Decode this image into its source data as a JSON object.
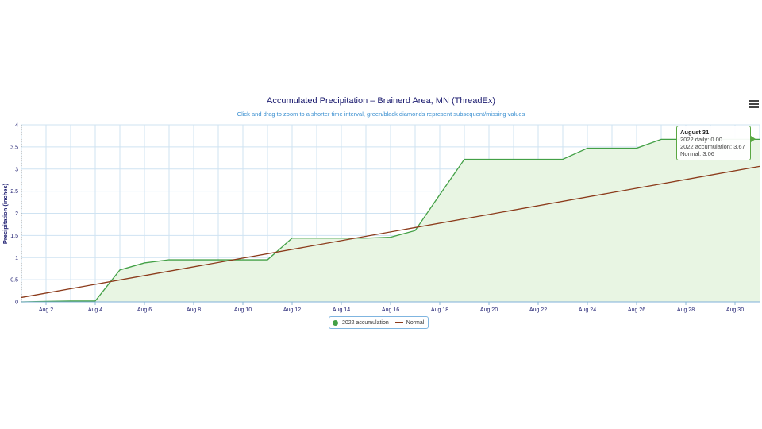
{
  "menu_icon": "hamburger-menu-icon",
  "chart_data": {
    "type": "area",
    "title": "Accumulated Precipitation – Brainerd Area, MN (ThreadEx)",
    "subtitle": "Click and drag to zoom to a shorter time interval, green/black diamonds represent subsequent/missing values",
    "ylabel": "Precipitation (inches)",
    "xlabel": "",
    "ylim": [
      0,
      4
    ],
    "yticks": [
      "0",
      "0.5",
      "1",
      "1.5",
      "2",
      "2.5",
      "3",
      "3.5",
      "4"
    ],
    "ytick_values": [
      0,
      0.5,
      1,
      1.5,
      2,
      2.5,
      3,
      3.5,
      4
    ],
    "xlim_day": [
      1,
      31
    ],
    "xticks": [
      "Aug 2",
      "Aug 4",
      "Aug 6",
      "Aug 8",
      "Aug 10",
      "Aug 12",
      "Aug 14",
      "Aug 16",
      "Aug 18",
      "Aug 20",
      "Aug 22",
      "Aug 24",
      "Aug 26",
      "Aug 28",
      "Aug 30"
    ],
    "xtick_days": [
      2,
      4,
      6,
      8,
      10,
      12,
      14,
      16,
      18,
      20,
      22,
      24,
      26,
      28,
      30
    ],
    "grid": true,
    "legend_position": "bottom-center",
    "series": [
      {
        "name": "2022 accumulation",
        "color": "#43a046",
        "fill": "#e8f5e3",
        "x": [
          1,
          2,
          3,
          4,
          5,
          6,
          7,
          8,
          9,
          10,
          11,
          12,
          13,
          14,
          15,
          16,
          17,
          18,
          19,
          20,
          21,
          22,
          23,
          24,
          25,
          26,
          27,
          28,
          29,
          30,
          31
        ],
        "values": [
          0.0,
          0.01,
          0.02,
          0.02,
          0.72,
          0.88,
          0.95,
          0.95,
          0.95,
          0.95,
          0.95,
          1.44,
          1.44,
          1.44,
          1.44,
          1.46,
          1.61,
          2.42,
          3.22,
          3.22,
          3.22,
          3.22,
          3.22,
          3.47,
          3.47,
          3.47,
          3.67,
          3.67,
          3.67,
          3.67,
          3.67
        ]
      },
      {
        "name": "Normal",
        "color": "#8b3a1a",
        "x": [
          1,
          31
        ],
        "values": [
          0.1,
          3.06
        ]
      }
    ]
  },
  "legend": {
    "items": [
      {
        "label": "2022 accumulation"
      },
      {
        "label": "Normal"
      }
    ]
  },
  "tooltip": {
    "header": "August 31",
    "line1": "2022 daily: 0.00",
    "line2": "2022 accumulation: 3.67",
    "line3": "Normal: 3.06"
  }
}
